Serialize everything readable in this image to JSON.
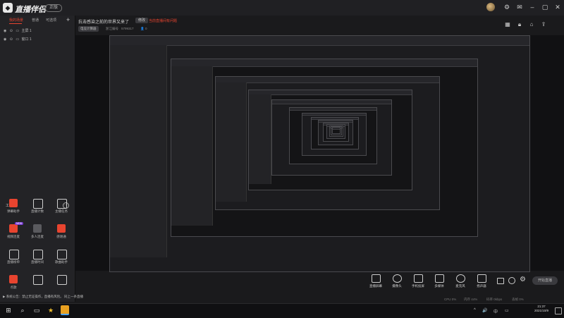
{
  "app": {
    "logo_glyph": "◆",
    "name": "直播伴侣",
    "version_badge": "正版"
  },
  "window_controls": [
    "avatar",
    "gear-icon",
    "mail-icon",
    "minimize-icon",
    "maximize-icon",
    "close-icon"
  ],
  "left_panel": {
    "tabs": [
      "我的场景",
      "普通",
      "可选项"
    ],
    "add_label": "+",
    "sources": [
      {
        "label": "主屏 1"
      },
      {
        "label": "窗口 1"
      }
    ],
    "tools_title": "工具箱",
    "tools_more": "⋯",
    "tools": [
      {
        "label": "弹幕助手",
        "color": "#e8442f",
        "badge": ""
      },
      {
        "label": "直播计数",
        "color": "#d0d0d0",
        "badge": ""
      },
      {
        "label": "主播任务",
        "color": "#d0d0d0",
        "badge": ""
      },
      {
        "label": "视频连麦",
        "color": "#e8442f",
        "badge": "NEW"
      },
      {
        "label": "多人连麦",
        "color": "#5a5a5e",
        "badge": ""
      },
      {
        "label": "感谢通",
        "color": "#e8442f",
        "badge": ""
      },
      {
        "label": "直播榜单",
        "color": "#d0d0d0",
        "badge": ""
      },
      {
        "label": "直播时间",
        "color": "#d0d0d0",
        "badge": ""
      },
      {
        "label": "歌曲助手",
        "color": "#d0d0d0",
        "badge": ""
      },
      {
        "label": "点歌",
        "color": "#e8442f",
        "badge": ""
      },
      {
        "label": "",
        "color": "#d0d0d0",
        "badge": ""
      },
      {
        "label": "",
        "color": "#d0d0d0",
        "badge": ""
      }
    ]
  },
  "header": {
    "title": "抗击感染之前的世界又来了",
    "edit_label": "修改",
    "red_note": "当前直播间有问题",
    "category": "电竞计算器",
    "id_label": "浙江编号",
    "id_value": "5799317",
    "viewer_count": "0",
    "icons": [
      "grid-icon",
      "lock-icon",
      "home-icon",
      "share-icon"
    ]
  },
  "controls": [
    {
      "label": "直播屏幕",
      "icon": "monitor-icon"
    },
    {
      "label": "摄像头",
      "icon": "camera-icon"
    },
    {
      "label": "手机投屏",
      "icon": "phone-icon"
    },
    {
      "label": "多媒体",
      "icon": "media-icon"
    },
    {
      "label": "麦克风",
      "icon": "mic-icon"
    },
    {
      "label": "扬声器",
      "icon": "speaker-icon"
    }
  ],
  "right_controls": [
    "record-icon",
    "clock-icon",
    "settings-icon"
  ],
  "start_button": "开始直播",
  "notice": "▶ 系统公告：禁止无证操作，直播有风险。 同上一条直播",
  "stats": [
    "CPU 0%",
    "内存 44%",
    "码率 0kbps",
    "丢帧 0%"
  ],
  "taskbar": {
    "time": "21:37",
    "date": "2021/10/9",
    "tray": [
      "^",
      "🔊",
      "中",
      "▭"
    ]
  }
}
